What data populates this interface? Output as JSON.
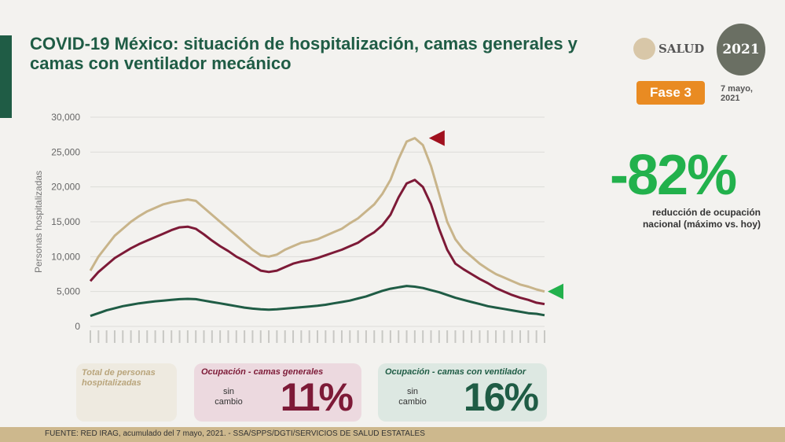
{
  "title": "COVID-19 México: situación de hospitalización, camas generales y camas con ventilador mecánico",
  "logos": {
    "salud": "SALUD",
    "anniversary": "2021"
  },
  "phase": "Fase 3",
  "date": "7 mayo, 2021",
  "headline": {
    "value": "-82%",
    "caption": "reducción de ocupación nacional (máximo vs. hoy)"
  },
  "cards": [
    {
      "label": "Total de personas hospitalizadas"
    },
    {
      "label": "Ocupación - camas generales",
      "status": "sin cambio",
      "value": "11%"
    },
    {
      "label": "Ocupación - camas con ventilador",
      "status": "sin cambio",
      "value": "16%"
    }
  ],
  "footer": "FUENTE: RED IRAG, acumulado del 7 mayo, 2021. -  SSA/SPPS/DGTI/SERVICIOS DE SALUD ESTATALES",
  "colors": {
    "total": "#c8b48a",
    "general": "#7d1a37",
    "ventilador": "#1f5c45"
  },
  "chart_data": {
    "type": "line",
    "ylabel": "Personas hospitalizadas",
    "ylim": [
      0,
      30000
    ],
    "yticks": [
      "0",
      "5,000",
      "10,000",
      "15,000",
      "20,000",
      "25,000",
      "30,000"
    ],
    "grid": true,
    "series": [
      {
        "name": "Total de personas hospitalizadas",
        "values": [
          8000,
          10000,
          11500,
          13000,
          14000,
          15000,
          15800,
          16500,
          17000,
          17500,
          17800,
          18000,
          18200,
          18000,
          17000,
          16000,
          15000,
          14000,
          13000,
          12000,
          11000,
          10200,
          10000,
          10300,
          11000,
          11500,
          12000,
          12200,
          12500,
          13000,
          13500,
          14000,
          14800,
          15500,
          16500,
          17500,
          19000,
          21000,
          24000,
          26500,
          27000,
          26000,
          23000,
          19000,
          15000,
          12500,
          11000,
          10000,
          9000,
          8200,
          7500,
          7000,
          6500,
          6000,
          5700,
          5300,
          5000
        ]
      },
      {
        "name": "Ocupación - camas generales",
        "values": [
          6500,
          7800,
          8800,
          9800,
          10500,
          11200,
          11800,
          12300,
          12800,
          13300,
          13800,
          14200,
          14300,
          14000,
          13200,
          12300,
          11500,
          10800,
          10000,
          9400,
          8700,
          8000,
          7800,
          8000,
          8500,
          9000,
          9300,
          9500,
          9800,
          10200,
          10600,
          11000,
          11500,
          12000,
          12800,
          13500,
          14500,
          16000,
          18500,
          20500,
          21000,
          20000,
          17500,
          14000,
          11000,
          9000,
          8200,
          7500,
          6800,
          6200,
          5500,
          5000,
          4500,
          4100,
          3800,
          3400,
          3200
        ]
      },
      {
        "name": "Ocupación - camas con ventilador",
        "values": [
          1500,
          1900,
          2300,
          2600,
          2900,
          3100,
          3300,
          3450,
          3600,
          3700,
          3800,
          3900,
          3950,
          3900,
          3700,
          3500,
          3300,
          3100,
          2900,
          2700,
          2550,
          2450,
          2400,
          2450,
          2550,
          2650,
          2750,
          2850,
          2950,
          3100,
          3300,
          3500,
          3700,
          4000,
          4300,
          4700,
          5100,
          5400,
          5600,
          5800,
          5700,
          5500,
          5200,
          4900,
          4500,
          4100,
          3800,
          3500,
          3200,
          2900,
          2700,
          2500,
          2300,
          2100,
          1900,
          1800,
          1600
        ]
      }
    ]
  }
}
